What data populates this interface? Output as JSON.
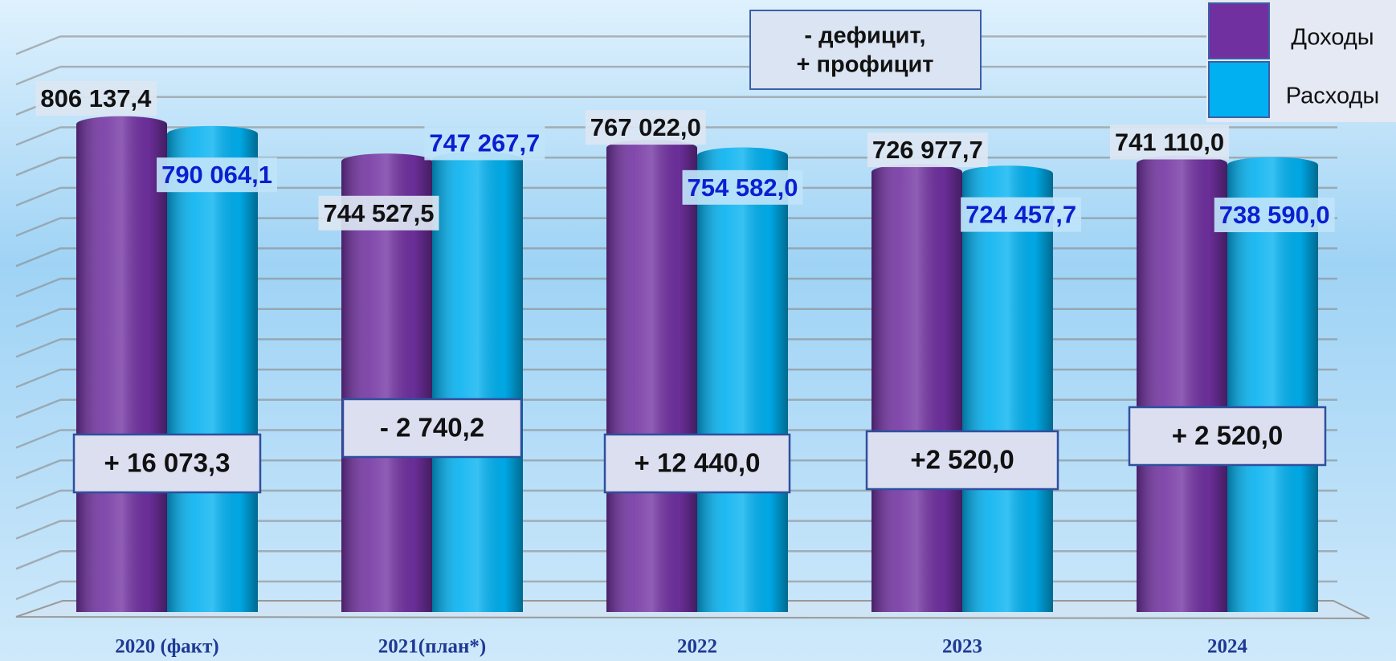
{
  "chart_data": {
    "type": "bar",
    "categories": [
      "2020 (факт)",
      "2021(план*)",
      "2022",
      "2023",
      "2024"
    ],
    "series": [
      {
        "name": "Доходы",
        "color": "#7030a0",
        "values": [
          806137.4,
          744527.5,
          767022.0,
          726977.7,
          741110.0
        ],
        "value_labels": [
          "806 137,4",
          "744 527,5",
          "767 022,0",
          "726 977,7",
          "741 110,0"
        ]
      },
      {
        "name": "Расходы",
        "color": "#00b0f0",
        "values": [
          790064.1,
          747267.7,
          754582.0,
          724457.7,
          738590.0
        ],
        "value_labels": [
          "790 064,1",
          "747 267,7",
          "754 582,0",
          "724 457,7",
          "738 590,0"
        ]
      }
    ],
    "balance": {
      "values": [
        16073.3,
        -2740.2,
        12440.0,
        2520.0,
        2520.0
      ],
      "value_labels": [
        "+ 16 073,3",
        "- 2 740,2",
        "+ 12 440,0",
        "+2 520,0",
        "+ 2 520,0"
      ]
    },
    "annotation": [
      "-  дефицит,",
      "+ профицит"
    ],
    "ylim": [
      0,
      900000
    ],
    "legend": "top-right"
  }
}
